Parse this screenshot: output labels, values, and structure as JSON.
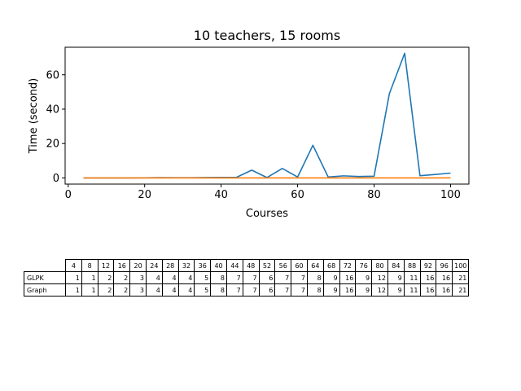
{
  "chart_data": {
    "type": "line",
    "title": "10 teachers, 15 rooms",
    "xlabel": "Courses",
    "ylabel": "Time (second)",
    "xlim": [
      -0.8,
      104.8
    ],
    "ylim": [
      -3.6,
      76.0
    ],
    "xticks": [
      0,
      20,
      40,
      60,
      80,
      100
    ],
    "yticks": [
      0,
      20,
      40,
      60
    ],
    "grid": false,
    "legend": "none",
    "x": [
      4,
      8,
      12,
      16,
      20,
      24,
      28,
      32,
      36,
      40,
      44,
      48,
      52,
      56,
      60,
      64,
      68,
      72,
      76,
      80,
      84,
      88,
      92,
      96,
      100
    ],
    "series": [
      {
        "color": "#1f77b4",
        "values": [
          0.0,
          0.0,
          0.0,
          0.0,
          0.05,
          0.15,
          0.1,
          0.1,
          0.2,
          0.3,
          0.3,
          4.5,
          0.2,
          5.5,
          0.5,
          19.0,
          0.5,
          1.2,
          0.8,
          1.0,
          49.0,
          72.5,
          1.3,
          2.0,
          2.8
        ]
      },
      {
        "color": "#ff7f0e",
        "values": [
          0.0,
          0.0,
          0.0,
          0.0,
          0.0,
          0.0,
          0.0,
          0.0,
          0.0,
          0.0,
          0.0,
          0.0,
          0.0,
          0.0,
          0.0,
          0.0,
          0.0,
          0.0,
          0.0,
          0.0,
          0.0,
          0.0,
          0.0,
          0.0,
          0.05
        ]
      }
    ]
  },
  "table": {
    "columns": [
      "4",
      "8",
      "12",
      "16",
      "20",
      "24",
      "28",
      "32",
      "36",
      "40",
      "44",
      "48",
      "52",
      "56",
      "60",
      "64",
      "68",
      "72",
      "76",
      "80",
      "84",
      "88",
      "92",
      "96",
      "100"
    ],
    "rows": [
      {
        "label": "GLPK",
        "values": [
          "1",
          "1",
          "2",
          "2",
          "3",
          "4",
          "4",
          "4",
          "5",
          "8",
          "7",
          "7",
          "6",
          "7",
          "7",
          "8",
          "9",
          "16",
          "9",
          "12",
          "9",
          "11",
          "16",
          "16",
          "21"
        ]
      },
      {
        "label": "Graph",
        "values": [
          "1",
          "1",
          "2",
          "2",
          "3",
          "4",
          "4",
          "4",
          "5",
          "8",
          "7",
          "7",
          "6",
          "7",
          "7",
          "8",
          "9",
          "16",
          "9",
          "12",
          "9",
          "11",
          "16",
          "16",
          "21"
        ]
      }
    ]
  }
}
